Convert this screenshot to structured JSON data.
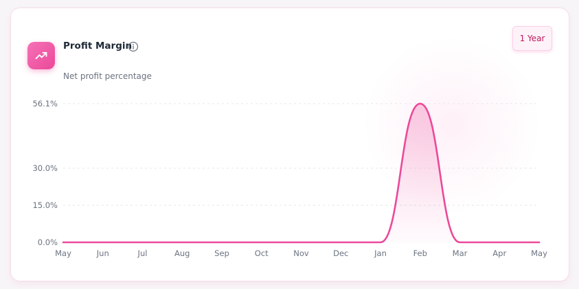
{
  "card": {
    "title": "Profit Margin",
    "subtitle": "Net profit percentage",
    "range_button": "1 Year",
    "icon": "trending-up-icon",
    "info_icon": "info-icon"
  },
  "colors": {
    "accent": "#ec4899",
    "accent_light": "#f472b6",
    "grid": "#e5e7eb",
    "text_muted": "#6b7280"
  },
  "chart_data": {
    "type": "area",
    "title": "Profit Margin",
    "subtitle": "Net profit percentage",
    "xlabel": "",
    "ylabel": "",
    "categories": [
      "May",
      "Jun",
      "Jul",
      "Aug",
      "Sep",
      "Oct",
      "Nov",
      "Dec",
      "Jan",
      "Feb",
      "Mar",
      "Apr",
      "May"
    ],
    "series": [
      {
        "values": [
          0,
          0,
          0,
          0,
          0,
          0,
          0,
          0,
          0,
          56.1,
          0,
          0,
          0
        ]
      }
    ],
    "y_ticks": [
      {
        "value": 0,
        "label": "0.0%"
      },
      {
        "value": 15,
        "label": "15.0%"
      },
      {
        "value": 30,
        "label": "30.0%"
      },
      {
        "value": 56.1,
        "label": "56.1%"
      }
    ],
    "ylim": [
      0,
      56.1
    ],
    "grid": true,
    "legend": "none"
  }
}
